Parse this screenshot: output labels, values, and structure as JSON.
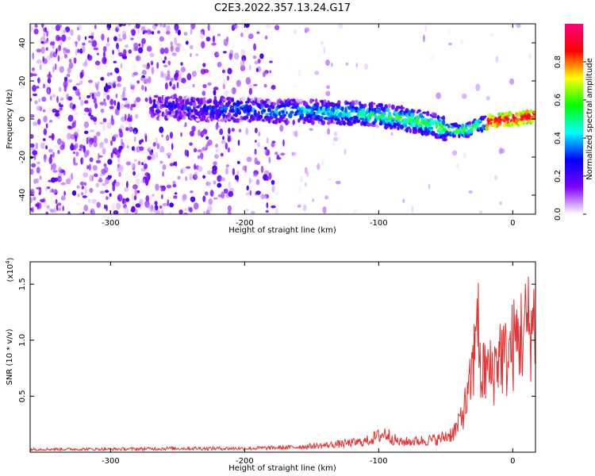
{
  "figure": {
    "title": "C2E3.2022.357.13.24.G17"
  },
  "chart_data": [
    {
      "type": "heatmap",
      "xlabel": "Height of straight line (km)",
      "ylabel": "Frequency (Hz)",
      "xlim": [
        -360,
        17
      ],
      "ylim": [
        -50,
        50
      ],
      "xticks": [
        -300,
        -200,
        -100,
        0
      ],
      "yticks": [
        -40,
        -20,
        0,
        20,
        40
      ],
      "colorbar": {
        "label": "Normalized spectral amplitude",
        "range": [
          0,
          1
        ],
        "ticks": [
          "0.0",
          "0.2",
          "0.4",
          "0.6",
          "0.8"
        ],
        "tick_values": [
          0,
          0.2,
          0.4,
          0.6,
          0.8
        ],
        "colormap": [
          "#ffffff",
          "#8000ff",
          "#0000ff",
          "#00ffff",
          "#00ff00",
          "#ffff00",
          "#ff0000",
          "#ff0080"
        ]
      },
      "noise_region_km": [
        -360,
        -170
      ],
      "signal_trace": {
        "x": [
          -270,
          -250,
          -230,
          -200,
          -180,
          -150,
          -120,
          -100,
          -80,
          -60,
          -45,
          -35,
          -25,
          -15,
          0,
          10,
          17
        ],
        "y": [
          6,
          6,
          5,
          5,
          4,
          4,
          3,
          2,
          0,
          -3,
          -6,
          -6,
          -3,
          -1,
          0,
          1,
          2
        ]
      }
    },
    {
      "type": "line",
      "xlabel": "Height of straight line (km)",
      "ylabel": "SNR (10 * v/v)",
      "multiplier_label": "(x10",
      "multiplier_exp": "4",
      "multiplier_close": ")",
      "xlim": [
        -360,
        17
      ],
      "ylim": [
        0,
        1.7
      ],
      "xticks": [
        -300,
        -200,
        -100,
        0
      ],
      "yticks": [
        0.5,
        1.0,
        1.5
      ],
      "ytick_labels": [
        "0.5",
        "1.0",
        "1.5"
      ],
      "series": [
        {
          "color": "#e83030",
          "x": [
            -360,
            -300,
            -250,
            -200,
            -170,
            -140,
            -110,
            -95,
            -85,
            -70,
            -55,
            -45,
            -38,
            -33,
            -30,
            -28,
            -26,
            -24,
            -20,
            -15,
            -10,
            -5,
            0,
            5,
            10,
            17
          ],
          "y": [
            0.04,
            0.04,
            0.05,
            0.05,
            0.06,
            0.09,
            0.14,
            0.25,
            0.13,
            0.15,
            0.17,
            0.25,
            0.4,
            0.6,
            0.9,
            1.1,
            1.55,
            0.8,
            0.9,
            0.85,
            1.1,
            1.0,
            1.15,
            1.25,
            1.35,
            1.4
          ]
        }
      ]
    }
  ]
}
